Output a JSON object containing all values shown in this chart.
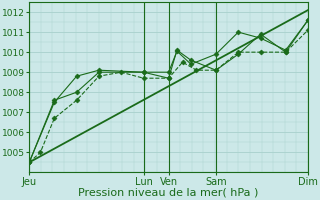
{
  "background_color": "#cce8e8",
  "grid_color": "#a8d0cc",
  "line_color": "#1a6b1a",
  "xlim": [
    0,
    1
  ],
  "ylim": [
    1004.2,
    1012.5
  ],
  "yticks": [
    1005,
    1006,
    1007,
    1008,
    1009,
    1010,
    1011,
    1012
  ],
  "ytick_fontsize": 6.5,
  "xtick_labels": [
    "Jeu",
    "Lun",
    "Ven",
    "Sam",
    "Dim"
  ],
  "xtick_positions": [
    0.0,
    0.41,
    0.5,
    0.67,
    1.0
  ],
  "xtick_fontsize": 7,
  "xlabel": "Pression niveau de la mer( hPa )",
  "xlabel_fontsize": 8,
  "vlines": [
    0.0,
    0.41,
    0.5,
    0.67,
    1.0
  ],
  "lines": [
    {
      "x": [
        0.0,
        0.04,
        0.09,
        0.17,
        0.25,
        0.33,
        0.41,
        0.5,
        0.55,
        0.6,
        0.67,
        0.75,
        0.83,
        0.92,
        1.0
      ],
      "y": [
        1004.5,
        1005.0,
        1006.7,
        1007.6,
        1008.8,
        1009.0,
        1008.7,
        1008.7,
        1009.5,
        1009.1,
        1009.1,
        1010.0,
        1010.0,
        1010.0,
        1011.1
      ],
      "style": "--",
      "marker": "D",
      "markersize": 2.5,
      "linewidth": 0.8
    },
    {
      "x": [
        0.0,
        0.09,
        0.17,
        0.25,
        0.41,
        0.5,
        0.53,
        0.58,
        0.67,
        0.75,
        0.83,
        0.92,
        1.0
      ],
      "y": [
        1004.5,
        1007.5,
        1008.8,
        1009.1,
        1009.0,
        1008.7,
        1010.1,
        1009.6,
        1009.1,
        1009.9,
        1010.9,
        1010.0,
        1011.6
      ],
      "style": "-",
      "marker": "D",
      "markersize": 2.5,
      "linewidth": 0.8
    },
    {
      "x": [
        0.0,
        0.09,
        0.17,
        0.25,
        0.41,
        0.5,
        0.53,
        0.58,
        0.67,
        0.75,
        0.83,
        0.92,
        1.0
      ],
      "y": [
        1004.5,
        1007.6,
        1008.0,
        1009.0,
        1009.0,
        1009.0,
        1010.05,
        1009.4,
        1009.9,
        1011.0,
        1010.7,
        1010.1,
        1011.6
      ],
      "style": "-",
      "marker": "D",
      "markersize": 2.5,
      "linewidth": 0.8
    },
    {
      "x": [
        0.0,
        1.0
      ],
      "y": [
        1004.5,
        1012.1
      ],
      "style": "-",
      "marker": null,
      "markersize": 0,
      "linewidth": 1.3
    }
  ]
}
